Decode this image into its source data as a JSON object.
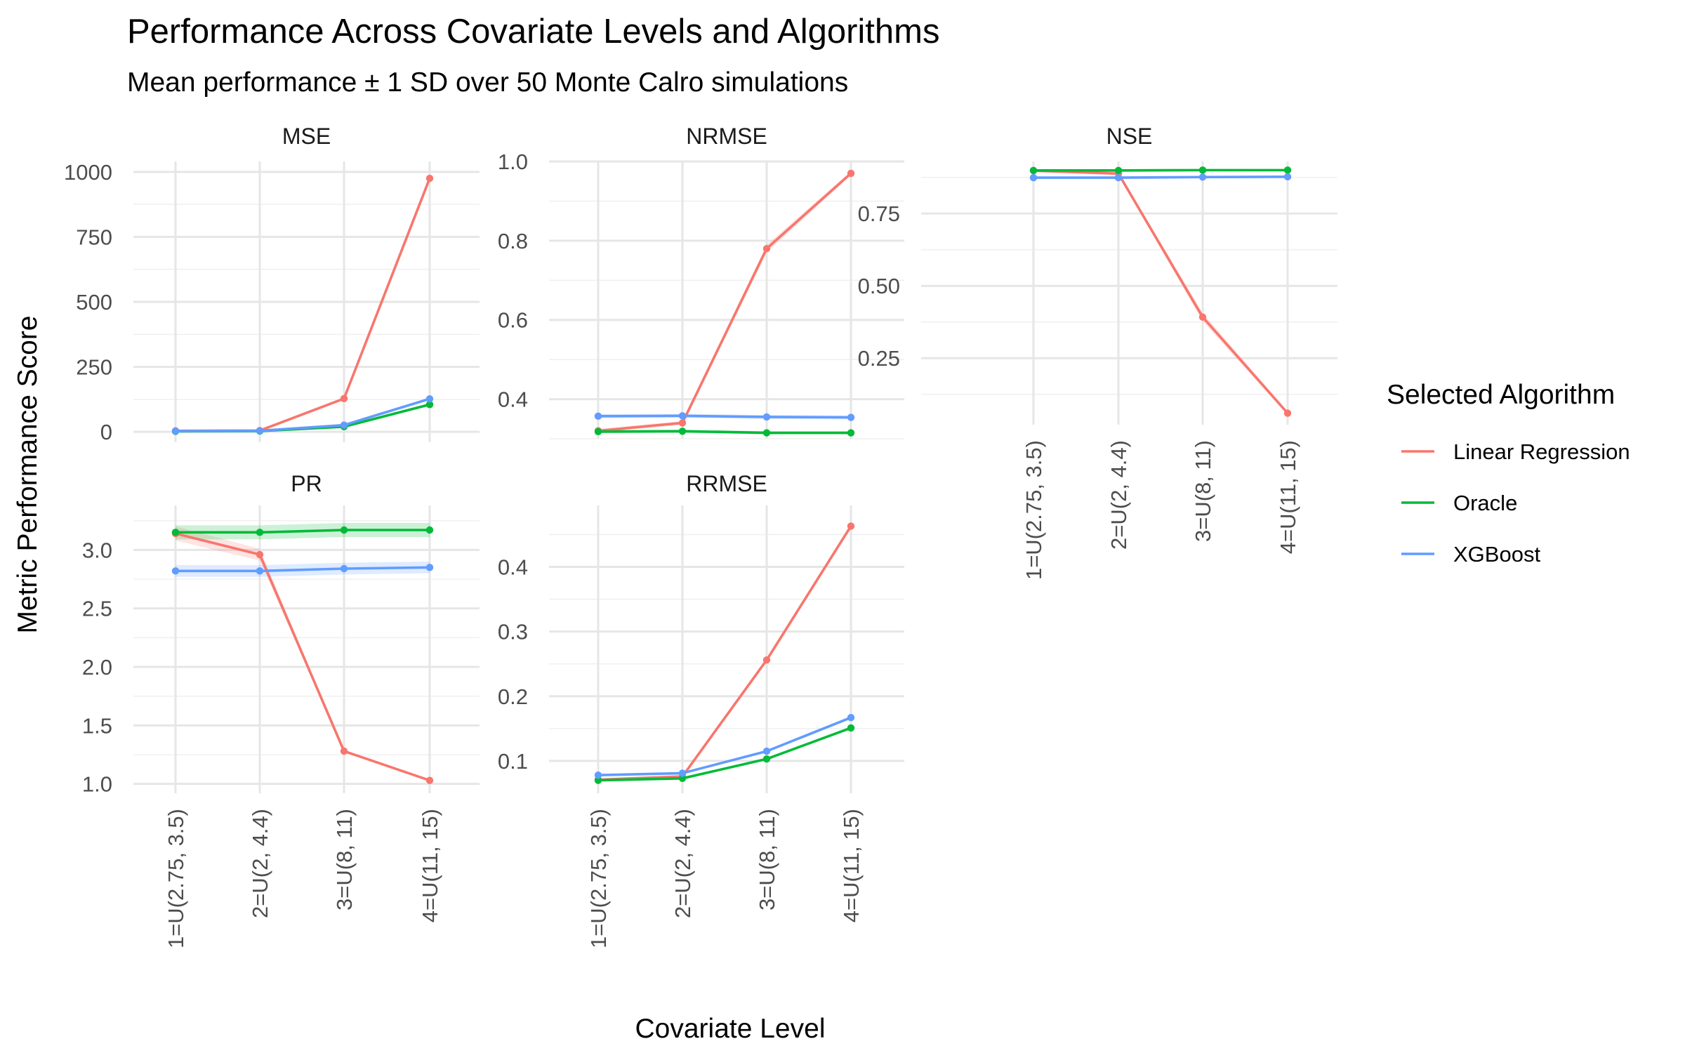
{
  "title": "Performance Across Covariate Levels and Algorithms",
  "subtitle": "Mean performance ± 1 SD over 50 Monte Calro simulations",
  "x_axis_title": "Covariate Level",
  "y_axis_title": "Metric Performance Score",
  "legend": {
    "title": "Selected Algorithm",
    "placement": "right",
    "items": [
      {
        "label": "Linear Regression",
        "color": "#F8766D"
      },
      {
        "label": "Oracle",
        "color": "#00BA38"
      },
      {
        "label": "XGBoost",
        "color": "#619CFF"
      }
    ]
  },
  "chart_data": {
    "type": "line",
    "facets": "free y scales, 2 rows x 3 columns",
    "grid": true,
    "categories": [
      "1=U(2.75, 3.5)",
      "2=U(2, 4.4)",
      "3=U(8, 11)",
      "4=U(11, 15)"
    ],
    "panels": [
      {
        "name": "MSE",
        "ylim": [
          -40,
          1040
        ],
        "y_ticks": [
          0,
          250,
          500,
          750,
          1000
        ],
        "y_tick_labels": [
          "0",
          "250",
          "500",
          "750",
          "1000"
        ],
        "series": [
          {
            "name": "Linear Regression",
            "values": [
              4,
              5,
              128,
              975
            ],
            "sd": [
              1,
              1,
              4,
              8
            ]
          },
          {
            "name": "Oracle",
            "values": [
              2,
              3,
              20,
              105
            ],
            "sd": [
              1,
              1,
              2,
              4
            ]
          },
          {
            "name": "XGBoost",
            "values": [
              3,
              4,
              26,
              127
            ],
            "sd": [
              1,
              1,
              2,
              4
            ]
          }
        ]
      },
      {
        "name": "NRMSE",
        "ylim": [
          0.3,
          1.0
        ],
        "y_ticks": [
          0.4,
          0.6,
          0.8,
          1.0
        ],
        "y_tick_labels": [
          "0.4",
          "0.6",
          "0.8",
          "1.0"
        ],
        "series": [
          {
            "name": "Linear Regression",
            "values": [
              0.32,
              0.34,
              0.78,
              0.97
            ],
            "sd": [
              0.005,
              0.005,
              0.01,
              0.005
            ]
          },
          {
            "name": "Oracle",
            "values": [
              0.318,
              0.319,
              0.315,
              0.315
            ],
            "sd": [
              0.004,
              0.004,
              0.004,
              0.004
            ]
          },
          {
            "name": "XGBoost",
            "values": [
              0.357,
              0.358,
              0.355,
              0.354
            ],
            "sd": [
              0.005,
              0.005,
              0.005,
              0.005
            ]
          }
        ]
      },
      {
        "name": "NSE",
        "ylim": [
          0.02,
          0.93
        ],
        "y_ticks": [
          0.25,
          0.5,
          0.75
        ],
        "y_tick_labels": [
          "0.25",
          "0.50",
          "0.75"
        ],
        "series": [
          {
            "name": "Linear Regression",
            "values": [
              0.898,
              0.888,
              0.392,
              0.06
            ],
            "sd": [
              0.004,
              0.005,
              0.015,
              0.006
            ]
          },
          {
            "name": "Oracle",
            "values": [
              0.899,
              0.899,
              0.9,
              0.9
            ],
            "sd": [
              0.003,
              0.003,
              0.003,
              0.003
            ]
          },
          {
            "name": "XGBoost",
            "values": [
              0.874,
              0.874,
              0.876,
              0.877
            ],
            "sd": [
              0.004,
              0.004,
              0.004,
              0.004
            ]
          }
        ]
      },
      {
        "name": "PR",
        "ylim": [
          0.92,
          3.38
        ],
        "y_ticks": [
          1.0,
          1.5,
          2.0,
          2.5,
          3.0
        ],
        "y_tick_labels": [
          "1.0",
          "1.5",
          "2.0",
          "2.5",
          "3.0"
        ],
        "series": [
          {
            "name": "Linear Regression",
            "values": [
              3.14,
              2.96,
              1.28,
              1.03
            ],
            "sd": [
              0.06,
              0.05,
              0.01,
              0.005
            ]
          },
          {
            "name": "Oracle",
            "values": [
              3.15,
              3.15,
              3.17,
              3.17
            ],
            "sd": [
              0.06,
              0.06,
              0.06,
              0.06
            ]
          },
          {
            "name": "XGBoost",
            "values": [
              2.82,
              2.82,
              2.84,
              2.85
            ],
            "sd": [
              0.05,
              0.05,
              0.05,
              0.05
            ]
          }
        ]
      },
      {
        "name": "RRMSE",
        "ylim": [
          0.05,
          0.495
        ],
        "y_ticks": [
          0.1,
          0.2,
          0.3,
          0.4
        ],
        "y_tick_labels": [
          "0.1",
          "0.2",
          "0.3",
          "0.4"
        ],
        "series": [
          {
            "name": "Linear Regression",
            "values": [
              0.071,
              0.076,
              0.256,
              0.463
            ],
            "sd": [
              0.002,
              0.002,
              0.003,
              0.003
            ]
          },
          {
            "name": "Oracle",
            "values": [
              0.07,
              0.073,
              0.103,
              0.151
            ],
            "sd": [
              0.001,
              0.001,
              0.001,
              0.002
            ]
          },
          {
            "name": "XGBoost",
            "values": [
              0.078,
              0.081,
              0.115,
              0.167
            ],
            "sd": [
              0.001,
              0.001,
              0.001,
              0.002
            ]
          }
        ]
      }
    ]
  }
}
